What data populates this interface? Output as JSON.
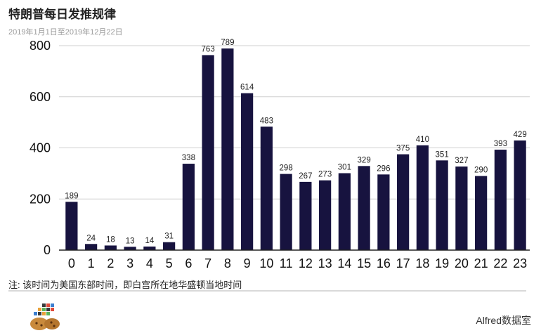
{
  "header": {
    "title": "特朗普每日发推规律",
    "subtitle": "2019年1月1日至2019年12月22日"
  },
  "footer": {
    "note": "注: 该时间为美国东部时间，即白宫所在地华盛顿当地时间",
    "brand": "Alfred数据室"
  },
  "colors": {
    "bar": "#17133f",
    "axis": "#222222",
    "grid": "#cfcfcf"
  },
  "chart_data": {
    "type": "bar",
    "categories": [
      "0",
      "1",
      "2",
      "3",
      "4",
      "5",
      "6",
      "7",
      "8",
      "9",
      "10",
      "11",
      "12",
      "13",
      "14",
      "15",
      "16",
      "17",
      "18",
      "19",
      "20",
      "21",
      "22",
      "23"
    ],
    "values": [
      189,
      24,
      18,
      13,
      14,
      31,
      338,
      763,
      789,
      614,
      483,
      298,
      267,
      273,
      301,
      329,
      296,
      375,
      410,
      351,
      327,
      290,
      393,
      429
    ],
    "value_labels": [
      "189",
      "24",
      "18",
      "13",
      "14",
      "31",
      "338",
      "763",
      "789",
      "614",
      "483",
      "298",
      "267",
      "273",
      "301",
      "329",
      "296",
      "375",
      "410",
      "351",
      "327",
      "290",
      "393",
      "429"
    ],
    "yticks": [
      0,
      200,
      400,
      600,
      800
    ],
    "ytick_labels": [
      "0",
      "200",
      "400",
      "600",
      "800"
    ],
    "ylim": [
      0,
      800
    ],
    "grid": true,
    "legend": "none"
  }
}
